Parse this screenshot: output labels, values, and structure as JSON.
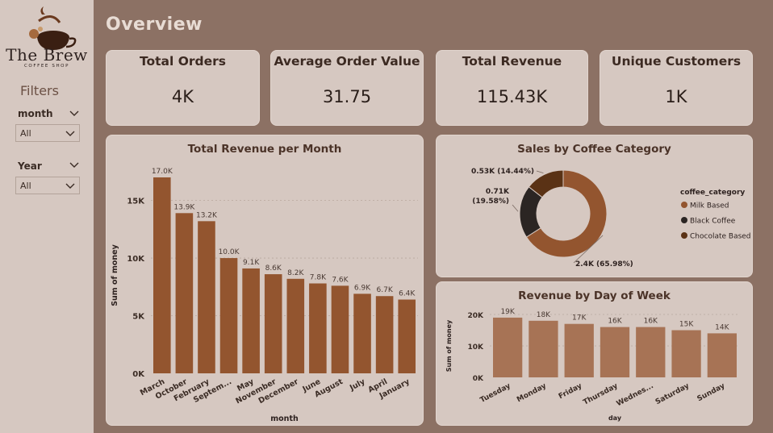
{
  "brand": {
    "name": "The Brew",
    "tagline": "COFFEE SHOP"
  },
  "sidebar": {
    "title": "Filters",
    "filters": [
      {
        "label": "month",
        "value": "All"
      },
      {
        "label": "Year",
        "value": "All"
      }
    ]
  },
  "header": {
    "title": "Overview"
  },
  "kpis": [
    {
      "label": "Total Orders",
      "value": "4K"
    },
    {
      "label": "Average Order Value",
      "value": "31.75"
    },
    {
      "label": "Total Revenue",
      "value": "115.43K"
    },
    {
      "label": "Unique Customers",
      "value": "1K"
    }
  ],
  "colors": {
    "bar": "#93552f",
    "bar_light": "#a77355",
    "milk": "#93552f",
    "black": "#2b2523",
    "chocolate": "#5a3215"
  },
  "chart_data": [
    {
      "type": "bar",
      "title": "Total Revenue per Month",
      "xlabel": "month",
      "ylabel": "Sum of money",
      "ylim": [
        0,
        17000
      ],
      "yticks": [
        "0K",
        "5K",
        "10K",
        "15K"
      ],
      "categories": [
        "March",
        "October",
        "February",
        "Septem...",
        "May",
        "November",
        "December",
        "June",
        "August",
        "July",
        "April",
        "January"
      ],
      "values": [
        17000,
        13900,
        13200,
        10000,
        9100,
        8600,
        8200,
        7800,
        7600,
        6900,
        6700,
        6400
      ],
      "labels": [
        "17.0K",
        "13.9K",
        "13.2K",
        "10.0K",
        "9.1K",
        "8.6K",
        "8.2K",
        "7.8K",
        "7.6K",
        "6.9K",
        "6.7K",
        "6.4K"
      ]
    },
    {
      "type": "pie",
      "title": "Sales by Coffee Category",
      "legend_title": "coffee_category",
      "categories": [
        "Milk Based",
        "Black Coffee",
        "Chocolate Based"
      ],
      "values": [
        65.98,
        19.58,
        14.44
      ],
      "labels": [
        "2.4K (65.98%)",
        "0.71K (19.58%)",
        "0.53K (14.44%)"
      ]
    },
    {
      "type": "bar",
      "title": "Revenue by Day of Week",
      "xlabel": "day",
      "ylabel": "Sum of money",
      "ylim": [
        0,
        20000
      ],
      "yticks": [
        "0K",
        "10K",
        "20K"
      ],
      "categories": [
        "Tuesday",
        "Monday",
        "Friday",
        "Thursday",
        "Wednes...",
        "Saturday",
        "Sunday"
      ],
      "values": [
        19000,
        18000,
        17000,
        16000,
        16000,
        15000,
        14000
      ],
      "labels": [
        "19K",
        "18K",
        "17K",
        "16K",
        "16K",
        "15K",
        "14K"
      ]
    }
  ]
}
